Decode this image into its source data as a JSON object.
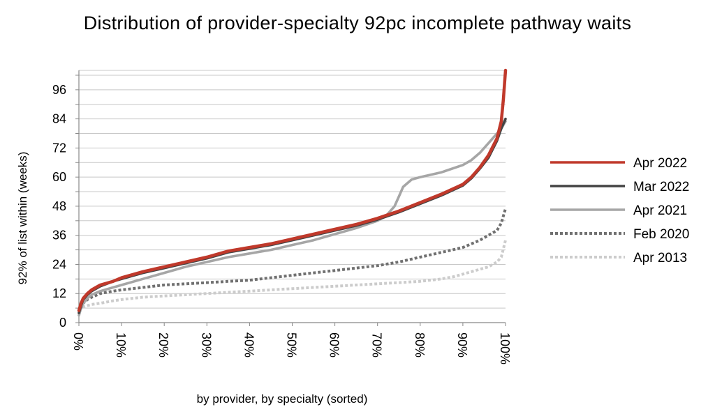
{
  "chart_data": {
    "type": "line",
    "title": "Distribution of provider-specialty 92pc incomplete pathway waits",
    "xlabel": "by provider, by specialty (sorted)",
    "ylabel": "92% of list within (weeks)",
    "xlim": [
      0,
      100
    ],
    "ylim": [
      0,
      104
    ],
    "x_ticks": [
      "0%",
      "10%",
      "20%",
      "30%",
      "40%",
      "50%",
      "60%",
      "70%",
      "80%",
      "90%",
      "100%"
    ],
    "x_tick_values": [
      0,
      10,
      20,
      30,
      40,
      50,
      60,
      70,
      80,
      90,
      100
    ],
    "y_ticks": [
      "0",
      "12",
      "24",
      "36",
      "48",
      "60",
      "72",
      "84",
      "96"
    ],
    "y_tick_values": [
      0,
      12,
      24,
      36,
      48,
      60,
      72,
      84,
      96
    ],
    "y_minor_step": 6,
    "grid": "horizontal",
    "legend_position": "right",
    "series": [
      {
        "name": "Apr 2022",
        "color": "#c0392b",
        "style": "solid",
        "x": [
          0,
          0.5,
          1,
          2,
          3,
          5,
          8,
          10,
          15,
          20,
          25,
          30,
          35,
          40,
          45,
          50,
          55,
          60,
          65,
          70,
          75,
          80,
          85,
          90,
          92,
          94,
          96,
          97,
          98,
          99,
          99.5,
          100
        ],
        "y": [
          5,
          8,
          10,
          12,
          13.5,
          15.5,
          17,
          18.5,
          21,
          23,
          25,
          27,
          29.5,
          31,
          32.5,
          34.5,
          36.5,
          38.5,
          40.5,
          43,
          46,
          49.5,
          53,
          57,
          60,
          64,
          69,
          72.5,
          76,
          83,
          92,
          104
        ]
      },
      {
        "name": "Mar 2022",
        "color": "#444444",
        "style": "solid",
        "x": [
          0,
          0.5,
          1,
          2,
          3,
          5,
          8,
          10,
          15,
          20,
          25,
          30,
          35,
          40,
          45,
          50,
          55,
          60,
          65,
          70,
          75,
          80,
          85,
          90,
          92,
          94,
          96,
          97,
          98,
          99,
          100
        ],
        "y": [
          4,
          7,
          9.5,
          11.5,
          13,
          15,
          17,
          18,
          20.5,
          22.5,
          24.5,
          26.5,
          29,
          30.5,
          32,
          34,
          36,
          38,
          40,
          42.5,
          45.5,
          49,
          52.5,
          56.5,
          59.5,
          63.5,
          68,
          71.5,
          75,
          80,
          84
        ]
      },
      {
        "name": "Apr 2021",
        "color": "#a6a6a6",
        "style": "solid",
        "x": [
          0,
          0.5,
          1,
          2,
          3,
          5,
          8,
          10,
          15,
          20,
          25,
          30,
          35,
          40,
          45,
          50,
          55,
          60,
          65,
          70,
          72,
          74,
          75,
          76,
          78,
          80,
          85,
          90,
          92,
          94,
          96,
          97,
          98,
          99,
          100
        ],
        "y": [
          3,
          6,
          8,
          10,
          11.5,
          13,
          14.5,
          15.5,
          18,
          20.5,
          23,
          25,
          27,
          28.5,
          30,
          32,
          34,
          36.5,
          39,
          42,
          44,
          48,
          52,
          56,
          59,
          60,
          62,
          65,
          67,
          70,
          74,
          76,
          78,
          80,
          83
        ]
      },
      {
        "name": "Feb 2020",
        "color": "#707070",
        "style": "dotted",
        "x": [
          0,
          0.5,
          1,
          2,
          3,
          5,
          8,
          10,
          15,
          20,
          25,
          30,
          35,
          40,
          45,
          50,
          55,
          60,
          65,
          70,
          75,
          80,
          85,
          90,
          92,
          94,
          96,
          98,
          99,
          100
        ],
        "y": [
          4,
          6,
          8,
          9.5,
          10.5,
          12,
          13,
          13.5,
          14.5,
          15.5,
          16,
          16.5,
          17,
          17.5,
          18.5,
          19.5,
          20.5,
          21.5,
          22.5,
          23.5,
          25,
          27,
          29,
          31,
          32.5,
          34,
          36,
          38,
          41,
          47
        ]
      },
      {
        "name": "Apr 2013",
        "color": "#cccccc",
        "style": "dotted",
        "x": [
          0,
          0.5,
          1,
          2,
          3,
          5,
          8,
          10,
          15,
          20,
          25,
          30,
          35,
          40,
          45,
          50,
          55,
          60,
          65,
          70,
          75,
          80,
          85,
          88,
          90,
          92,
          94,
          96,
          98,
          99,
          100
        ],
        "y": [
          5,
          6,
          6.5,
          7,
          7.5,
          8,
          9,
          9.5,
          10.5,
          11,
          11.5,
          12,
          12.5,
          13,
          13.5,
          14,
          14.5,
          15,
          15.5,
          16,
          16.5,
          17,
          18,
          19,
          20,
          21,
          22,
          23,
          25,
          27,
          34
        ]
      }
    ]
  }
}
